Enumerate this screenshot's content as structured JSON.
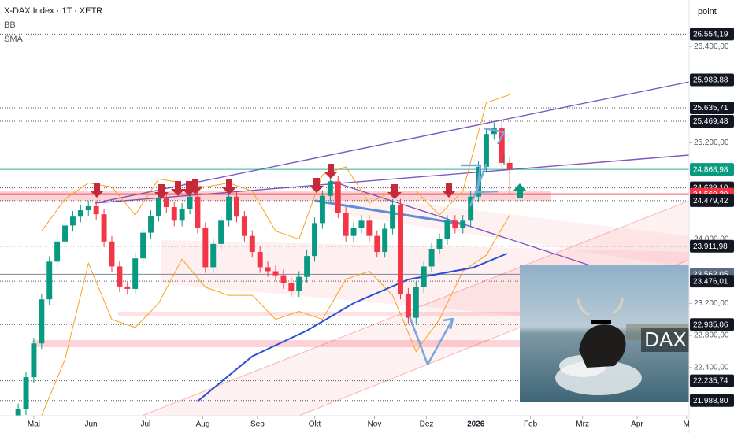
{
  "chart_data": {
    "type": "candlestick",
    "title": "X-DAX Index · 1T · XETR",
    "ylabel": "point",
    "photo_label": "DAX",
    "up_color": "#089981",
    "down_color": "#f23645",
    "xlim": [
      -7,
      258
    ],
    "xticks": [
      {
        "value": 6,
        "label": "Mai"
      },
      {
        "value": 28,
        "label": "Jun"
      },
      {
        "value": 49,
        "label": "Jul"
      },
      {
        "value": 71,
        "label": "Aug"
      },
      {
        "value": 92,
        "label": "Sep"
      },
      {
        "value": 114,
        "label": "Okt"
      },
      {
        "value": 137,
        "label": "Nov"
      },
      {
        "value": 157,
        "label": "Dez"
      },
      {
        "value": 176,
        "label": "2026"
      },
      {
        "value": 197,
        "label": "Feb"
      },
      {
        "value": 217,
        "label": "Mrz"
      },
      {
        "value": 238,
        "label": "Apr"
      },
      {
        "value": 257,
        "label": "M"
      }
    ],
    "ylim": [
      21800,
      26980
    ],
    "yticks": [
      {
        "value": 26400,
        "label": "26.400,00"
      },
      {
        "value": 25200,
        "label": "25.200,00"
      },
      {
        "value": 24000,
        "label": "24.000,00"
      },
      {
        "value": 23200,
        "label": "23.200,00"
      },
      {
        "value": 22800,
        "label": "22.800,00"
      },
      {
        "value": 22400,
        "label": "22.400,00"
      }
    ],
    "levels": {
      "values": [
        26554.19,
        25983.88,
        25635.71,
        25469.48,
        24868.98,
        24639.1,
        24560.29,
        24479.42,
        23911.98,
        23562.05,
        23476.01,
        22935.06,
        22235.74,
        21988.8
      ],
      "value_labels": [
        "26.554,19",
        "25.983,88",
        "25.635,71",
        "25.469,48",
        "24.868,98",
        "24.639,10",
        "24.560,29",
        "24.479,42",
        "23.911,98",
        "23.562,05",
        "23.476,01",
        "22.935,06",
        "22.235,74",
        "21.988,80"
      ],
      "colors": [
        "#131722",
        "#131722",
        "#131722",
        "#131722",
        "#089981",
        "#131722",
        "#f23645",
        "#131722",
        "#131722",
        "#5d6b86",
        "#131722",
        "#131722",
        "#131722",
        "#131722"
      ]
    },
    "x": [
      0,
      3,
      6,
      9,
      12,
      15,
      18,
      21,
      24,
      27,
      30,
      33,
      36,
      39,
      42,
      45,
      48,
      51,
      54,
      57,
      60,
      63,
      66,
      69,
      72,
      75,
      78,
      81,
      84,
      87,
      90,
      93,
      96,
      99,
      102,
      105,
      108,
      111,
      114,
      117,
      120,
      123,
      126,
      129,
      132,
      135,
      138,
      141,
      144,
      147,
      150,
      153,
      156,
      159,
      162,
      165,
      168,
      171,
      174,
      177,
      180,
      183,
      186,
      189
    ],
    "open": [
      21700,
      21880,
      22280,
      22700,
      23250,
      23720,
      23970,
      24170,
      24280,
      24360,
      24410,
      24310,
      23970,
      23660,
      23410,
      23380,
      23760,
      24080,
      24290,
      24510,
      24400,
      24230,
      24380,
      24530,
      24140,
      23650,
      23940,
      24230,
      24530,
      24280,
      24040,
      23840,
      23650,
      23600,
      23550,
      23450,
      23350,
      23530,
      23790,
      24200,
      24540,
      24720,
      24330,
      24040,
      24140,
      24230,
      24040,
      23840,
      24130,
      24430,
      23320,
      23020,
      23400,
      23660,
      23880,
      24000,
      24230,
      24140,
      24230,
      24530,
      24900,
      25310,
      25380,
      24950
    ],
    "high": [
      21950,
      22350,
      22770,
      23320,
      23790,
      24040,
      24240,
      24350,
      24430,
      24480,
      24480,
      24380,
      24040,
      23730,
      23480,
      23830,
      24150,
      24360,
      24580,
      24580,
      24470,
      24450,
      24600,
      24600,
      24210,
      24010,
      24300,
      24600,
      24600,
      24350,
      24110,
      23910,
      23720,
      23670,
      23620,
      23520,
      23600,
      23860,
      24270,
      24610,
      24790,
      24790,
      24400,
      24210,
      24300,
      24300,
      24110,
      24200,
      24500,
      24500,
      23390,
      23470,
      23730,
      23950,
      24070,
      24300,
      24300,
      24300,
      24600,
      24970,
      25380,
      25450,
      25450,
      25020
    ],
    "low": [
      21630,
      21810,
      22210,
      22630,
      23180,
      23650,
      23900,
      24100,
      24210,
      24290,
      24240,
      23900,
      23590,
      23340,
      23310,
      23310,
      23690,
      24010,
      24220,
      24330,
      24160,
      24160,
      24310,
      24070,
      23580,
      23580,
      23870,
      24160,
      24210,
      23970,
      23770,
      23580,
      23530,
      23480,
      23380,
      23280,
      23280,
      23460,
      23720,
      24130,
      24470,
      24260,
      23970,
      23970,
      24070,
      23970,
      23770,
      23770,
      24060,
      23250,
      22950,
      22950,
      23330,
      23590,
      23810,
      23930,
      24070,
      24070,
      24160,
      24460,
      24830,
      25240,
      24880,
      24560
    ],
    "close": [
      21880,
      22280,
      22700,
      23250,
      23720,
      23970,
      24170,
      24280,
      24360,
      24410,
      24310,
      23970,
      23660,
      23410,
      23380,
      23760,
      24080,
      24290,
      24510,
      24400,
      24230,
      24380,
      24530,
      24140,
      23650,
      23940,
      24230,
      24530,
      24280,
      24040,
      23840,
      23650,
      23600,
      23550,
      23450,
      23350,
      23530,
      23790,
      24200,
      24540,
      24720,
      24330,
      24040,
      24140,
      24230,
      24040,
      23840,
      24130,
      24430,
      23320,
      23020,
      23400,
      23660,
      23880,
      24000,
      24230,
      24140,
      24230,
      24530,
      24900,
      25310,
      25380,
      24950,
      24870
    ],
    "indicators": [
      {
        "name": "BB",
        "color": "#f7a21b",
        "x": [
          9,
          18,
          27,
          36,
          45,
          54,
          63,
          72,
          81,
          90,
          99,
          108,
          117,
          126,
          135,
          144,
          153,
          162,
          171,
          180,
          189
        ],
        "upper": [
          24100,
          24500,
          24700,
          24650,
          24300,
          24750,
          24700,
          24650,
          24700,
          24600,
          24100,
          24000,
          24800,
          24900,
          24450,
          24600,
          24600,
          24300,
          24600,
          25700,
          25800
        ],
        "lower": [
          21800,
          22500,
          23700,
          23000,
          22900,
          23200,
          23750,
          23400,
          23300,
          23300,
          23000,
          23100,
          23000,
          23500,
          23600,
          23300,
          22600,
          23000,
          23600,
          23800,
          24300
        ]
      },
      {
        "name": "SMA",
        "color": "#2a4fd6",
        "x": [
          69,
          90,
          111,
          129,
          150,
          175,
          188
        ],
        "values": [
          21980,
          22540,
          22860,
          23203,
          23497,
          23645,
          23821
        ]
      }
    ]
  }
}
